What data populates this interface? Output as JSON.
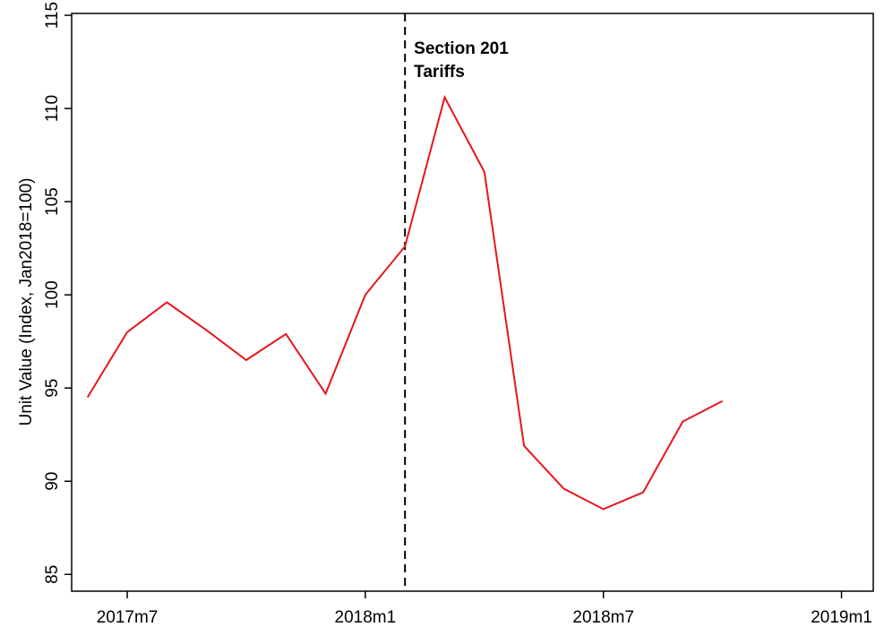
{
  "chart_data": {
    "type": "line",
    "y_label": "Unit Value (Index, Jan2018=100)",
    "x": [
      689,
      690,
      691,
      692,
      693,
      694,
      695,
      696,
      697,
      698,
      699,
      700,
      701,
      702,
      703,
      704,
      705
    ],
    "series": [
      {
        "color": "#e8141c",
        "values": [
          94.5,
          98.0,
          99.6,
          98.1,
          96.5,
          97.9,
          94.7,
          100.0,
          102.6,
          110.6,
          106.6,
          91.9,
          89.6,
          88.5,
          89.4,
          93.2,
          94.3
        ]
      }
    ],
    "xlim": [
      688.6,
      708.8
    ],
    "xticks": [
      {
        "value": 690,
        "label": "2017m7"
      },
      {
        "value": 696,
        "label": "2018m1"
      },
      {
        "value": 702,
        "label": "2018m7"
      },
      {
        "value": 708,
        "label": "2019m1"
      }
    ],
    "ylim": [
      84.1,
      115.1
    ],
    "yticks": [
      85,
      90,
      95,
      100,
      105,
      110,
      115
    ],
    "annotations": [
      {
        "x": 697,
        "text": [
          "Section 201",
          "Tariffs"
        ]
      }
    ]
  }
}
